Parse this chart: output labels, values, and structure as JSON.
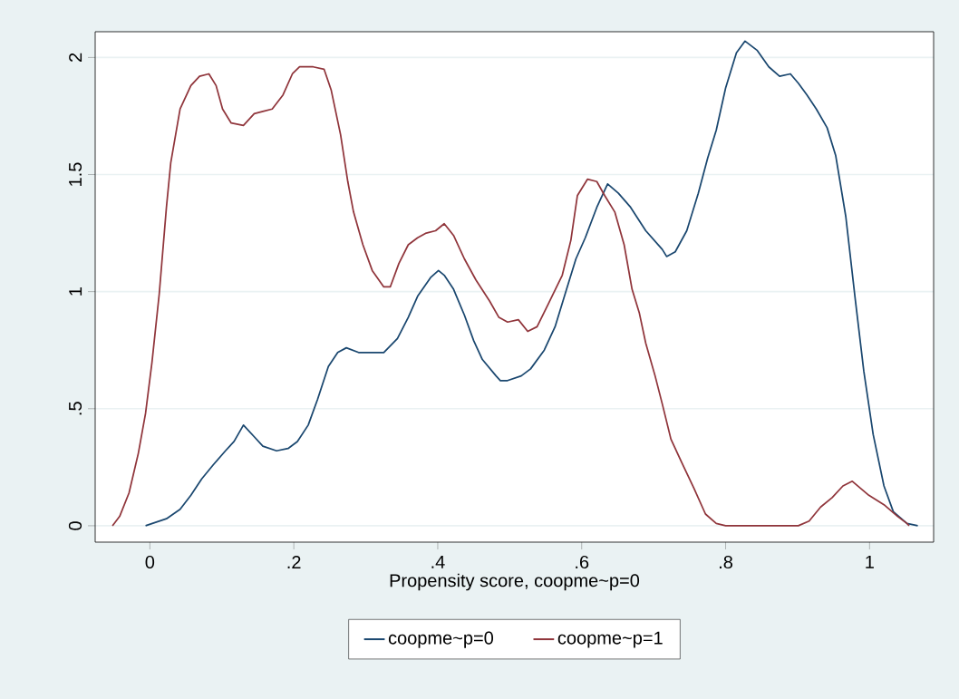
{
  "chart_data": {
    "type": "line",
    "xlabel": "Propensity score, coopme~p=0",
    "xlim": [
      -0.076,
      1.089
    ],
    "ylim": [
      -0.07,
      2.11
    ],
    "xticks": [
      {
        "value": 0,
        "label": "0"
      },
      {
        "value": 0.2,
        "label": ".2"
      },
      {
        "value": 0.4,
        "label": ".4"
      },
      {
        "value": 0.6,
        "label": ".6"
      },
      {
        "value": 0.8,
        "label": ".8"
      },
      {
        "value": 1,
        "label": "1"
      }
    ],
    "yticks": [
      {
        "value": 0,
        "label": "0"
      },
      {
        "value": 0.5,
        "label": ".5"
      },
      {
        "value": 1,
        "label": "1"
      },
      {
        "value": 1.5,
        "label": "1.5"
      },
      {
        "value": 2,
        "label": "2"
      }
    ],
    "grid": "y",
    "legend": "bottom",
    "marker": "none",
    "line_style": "solid",
    "series": [
      {
        "name": "coopme~p=0",
        "color": "#1a476f",
        "x": [
          -0.006,
          0.023,
          0.042,
          0.057,
          0.072,
          0.088,
          0.105,
          0.117,
          0.13,
          0.145,
          0.157,
          0.176,
          0.192,
          0.205,
          0.22,
          0.233,
          0.248,
          0.261,
          0.273,
          0.29,
          0.309,
          0.325,
          0.344,
          0.359,
          0.372,
          0.39,
          0.401,
          0.409,
          0.422,
          0.437,
          0.45,
          0.462,
          0.481,
          0.487,
          0.497,
          0.516,
          0.529,
          0.548,
          0.563,
          0.579,
          0.592,
          0.605,
          0.621,
          0.636,
          0.651,
          0.668,
          0.689,
          0.712,
          0.718,
          0.73,
          0.746,
          0.762,
          0.775,
          0.787,
          0.8,
          0.815,
          0.827,
          0.844,
          0.86,
          0.875,
          0.89,
          0.901,
          0.913,
          0.926,
          0.941,
          0.953,
          0.967,
          0.98,
          0.992,
          1.005,
          1.02,
          1.033,
          1.052,
          1.067
        ],
        "values": [
          0,
          0.03,
          0.07,
          0.13,
          0.2,
          0.26,
          0.32,
          0.36,
          0.43,
          0.38,
          0.34,
          0.32,
          0.33,
          0.36,
          0.43,
          0.54,
          0.68,
          0.74,
          0.76,
          0.74,
          0.74,
          0.74,
          0.8,
          0.89,
          0.98,
          1.06,
          1.09,
          1.07,
          1.01,
          0.9,
          0.79,
          0.71,
          0.64,
          0.62,
          0.62,
          0.64,
          0.67,
          0.75,
          0.85,
          1.01,
          1.14,
          1.23,
          1.36,
          1.46,
          1.42,
          1.36,
          1.26,
          1.18,
          1.15,
          1.17,
          1.26,
          1.42,
          1.57,
          1.69,
          1.87,
          2.02,
          2.07,
          2.03,
          1.96,
          1.92,
          1.93,
          1.89,
          1.84,
          1.78,
          1.7,
          1.58,
          1.32,
          0.97,
          0.66,
          0.39,
          0.17,
          0.06,
          0.01,
          0
        ]
      },
      {
        "name": "coopme~p=1",
        "color": "#90353b",
        "x": [
          -0.052,
          -0.042,
          -0.029,
          -0.016,
          -0.006,
          0.003,
          0.013,
          0.023,
          0.029,
          0.042,
          0.057,
          0.069,
          0.082,
          0.092,
          0.101,
          0.113,
          0.13,
          0.145,
          0.157,
          0.17,
          0.185,
          0.198,
          0.208,
          0.227,
          0.242,
          0.252,
          0.265,
          0.275,
          0.283,
          0.296,
          0.309,
          0.325,
          0.334,
          0.346,
          0.359,
          0.372,
          0.384,
          0.397,
          0.409,
          0.422,
          0.437,
          0.453,
          0.472,
          0.485,
          0.497,
          0.512,
          0.525,
          0.538,
          0.554,
          0.573,
          0.585,
          0.594,
          0.608,
          0.621,
          0.632,
          0.646,
          0.659,
          0.67,
          0.68,
          0.689,
          0.702,
          0.712,
          0.724,
          0.739,
          0.756,
          0.772,
          0.787,
          0.8,
          0.901,
          0.916,
          0.932,
          0.948,
          0.963,
          0.976,
          0.999,
          1.02,
          1.039,
          1.052,
          1.055
        ],
        "values": [
          0,
          0.04,
          0.14,
          0.31,
          0.48,
          0.7,
          0.99,
          1.36,
          1.55,
          1.78,
          1.88,
          1.92,
          1.93,
          1.88,
          1.78,
          1.72,
          1.71,
          1.76,
          1.77,
          1.78,
          1.84,
          1.93,
          1.96,
          1.96,
          1.95,
          1.86,
          1.67,
          1.47,
          1.34,
          1.2,
          1.09,
          1.02,
          1.02,
          1.12,
          1.2,
          1.23,
          1.25,
          1.26,
          1.29,
          1.24,
          1.14,
          1.05,
          0.96,
          0.89,
          0.87,
          0.88,
          0.83,
          0.85,
          0.95,
          1.07,
          1.22,
          1.41,
          1.48,
          1.47,
          1.41,
          1.34,
          1.2,
          1.01,
          0.91,
          0.78,
          0.64,
          0.52,
          0.37,
          0.27,
          0.16,
          0.05,
          0.01,
          0,
          0,
          0.02,
          0.08,
          0.12,
          0.17,
          0.19,
          0.13,
          0.09,
          0.04,
          0.01,
          0
        ]
      }
    ]
  }
}
